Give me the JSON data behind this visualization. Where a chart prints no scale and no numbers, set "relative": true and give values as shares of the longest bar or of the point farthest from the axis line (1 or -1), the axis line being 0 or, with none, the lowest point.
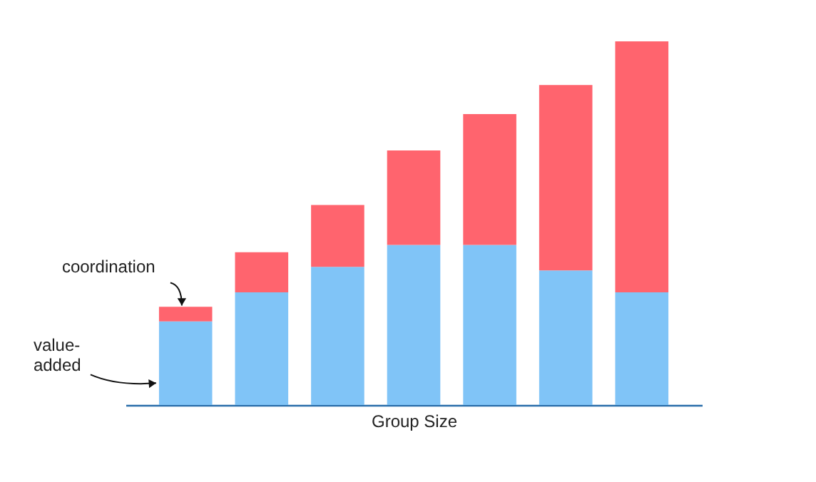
{
  "chart_data": {
    "type": "bar",
    "stacked": true,
    "relative": true,
    "xlabel": "Group Size",
    "categories": [
      null,
      null,
      null,
      null,
      null,
      null,
      null
    ],
    "series": [
      {
        "name": "value-added",
        "color": "#80c4f7",
        "values": [
          0.23,
          0.31,
          0.38,
          0.44,
          0.44,
          0.37,
          0.31
        ]
      },
      {
        "name": "coordination",
        "color": "#ff646e",
        "values": [
          0.04,
          0.11,
          0.17,
          0.26,
          0.36,
          0.51,
          0.69
        ]
      }
    ]
  }
}
